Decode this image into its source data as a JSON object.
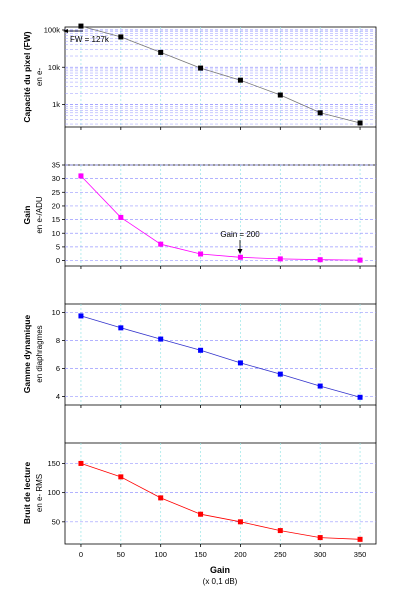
{
  "chart_data": [
    {
      "type": "line",
      "scale": "log",
      "ylabel": "Capacité du pixel (FW)",
      "ylabel_sub": "en e-",
      "x": [
        0,
        50,
        100,
        150,
        200,
        250,
        300,
        350
      ],
      "values": [
        127000,
        65000,
        25000,
        9500,
        4500,
        1800,
        600,
        320
      ],
      "ylim": [
        250,
        120000
      ],
      "yticks": [
        1000,
        10000,
        100000
      ],
      "ytick_labels": [
        "1k",
        "10k",
        "100k"
      ],
      "annotation": "FW = 127k",
      "color": "#000000",
      "line_color": "#777777",
      "grid": true
    },
    {
      "type": "line",
      "scale": "linear",
      "ylabel": "Gain",
      "ylabel_sub": "en e-/ADU",
      "x": [
        0,
        50,
        100,
        150,
        200,
        250,
        300,
        350
      ],
      "values": [
        31,
        15.8,
        6,
        2.4,
        1.2,
        0.6,
        0.3,
        0.15
      ],
      "ylim": [
        -2,
        35
      ],
      "yticks": [
        0,
        5,
        10,
        15,
        20,
        25,
        30,
        35
      ],
      "ytick_labels": [
        "0",
        "5",
        "10",
        "15",
        "20",
        "25",
        "30",
        "35"
      ],
      "annotation": "Gain = 200",
      "color": "#ff00ff",
      "line_color": "#ff00ff",
      "grid": true
    },
    {
      "type": "line",
      "scale": "linear",
      "ylabel": "Gamme dynamique",
      "ylabel_sub": "en diaphragmes",
      "x": [
        0,
        50,
        100,
        150,
        200,
        250,
        300,
        350
      ],
      "values": [
        9.75,
        8.9,
        8.1,
        7.3,
        6.4,
        5.6,
        4.75,
        3.95
      ],
      "ylim": [
        3.4,
        10.6
      ],
      "yticks": [
        4,
        6,
        8,
        10
      ],
      "ytick_labels": [
        "4",
        "6",
        "8",
        "10"
      ],
      "color": "#0000ff",
      "line_color": "#3333cc",
      "grid": true
    },
    {
      "type": "line",
      "scale": "linear",
      "ylabel": "Bruit de lecture",
      "ylabel_sub": "en e- RMS",
      "x": [
        0,
        50,
        100,
        150,
        200,
        250,
        300,
        350
      ],
      "values": [
        150,
        127,
        91,
        63,
        50,
        35,
        23,
        20
      ],
      "ylim": [
        12,
        185
      ],
      "yticks": [
        50,
        100,
        150
      ],
      "ytick_labels": [
        "50",
        "100",
        "150"
      ],
      "color": "#ff0000",
      "line_color": "#ff0000",
      "grid": true
    }
  ],
  "xaxis": {
    "label": "Gain",
    "sublabel": "(x 0,1 dB)",
    "xlim": [
      -20,
      370
    ],
    "ticks": [
      0,
      50,
      100,
      150,
      200,
      250,
      300,
      350
    ],
    "tick_labels": [
      "0",
      "50",
      "100",
      "150",
      "200",
      "250",
      "300",
      "350"
    ]
  },
  "colors": {
    "grid_h": "#9999ff",
    "grid_v": "#99e6e6",
    "frame": "#000000"
  }
}
